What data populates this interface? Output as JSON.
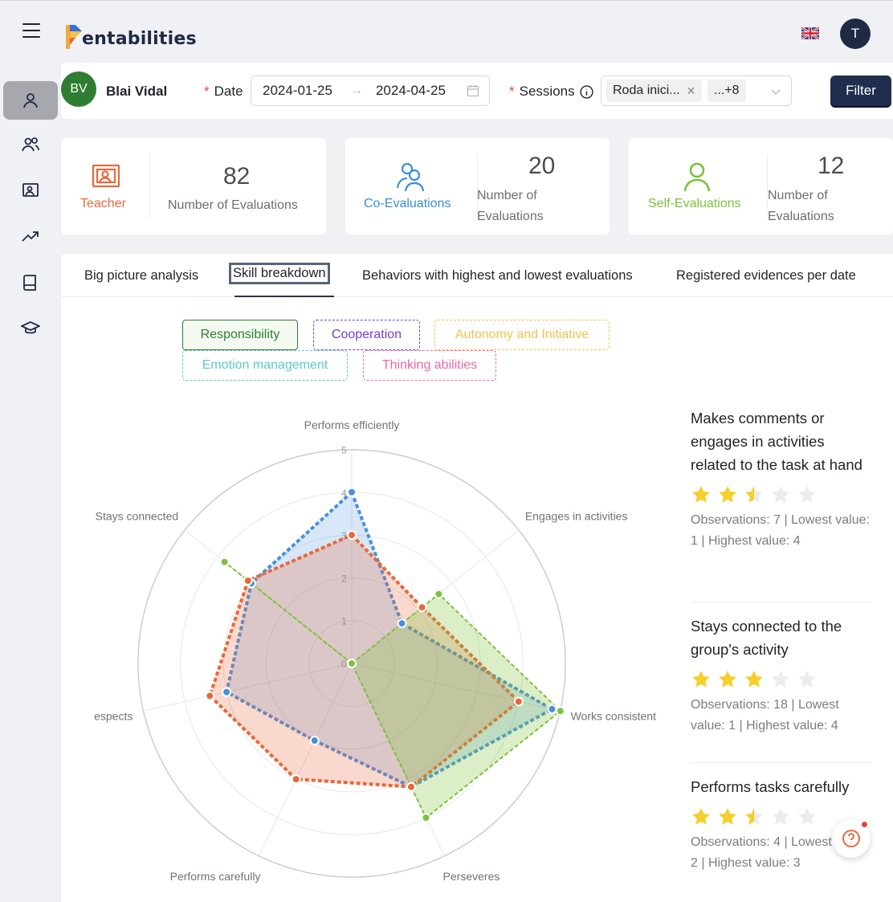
{
  "app": {
    "logo_text": "entabilities"
  },
  "header": {
    "user_initial": "T",
    "language_icon": "uk-flag-icon"
  },
  "sidebar": {
    "items": [
      "person-icon",
      "group-icon",
      "classroom-icon",
      "trend-icon",
      "book-icon",
      "graduation-icon"
    ]
  },
  "filters": {
    "student_initials": "BV",
    "student_name": "Blai Vidal",
    "required_mark": "*",
    "date_label": "Date",
    "date_start": "2024-01-25",
    "date_end": "2024-04-25",
    "sessions_label": "Sessions",
    "session_tag": "Roda inici...",
    "session_more": "...+8",
    "filter_button": "Filter"
  },
  "stats": [
    {
      "label": "Teacher",
      "value": "82",
      "sub": "Number of Evaluations",
      "color": "#e8683a"
    },
    {
      "label": "Co-Evaluations",
      "value": "20",
      "sub": "Number of Evaluations",
      "color": "#3a8fd6"
    },
    {
      "label": "Self-Evaluations",
      "value": "12",
      "sub": "Number of Evaluations",
      "color": "#7cc23a"
    }
  ],
  "tabs": [
    {
      "label": "Big picture analysis"
    },
    {
      "label": "Skill breakdown",
      "active": true
    },
    {
      "label": "Behaviors with highest and lowest evaluations"
    },
    {
      "label": "Registered evidences per date"
    }
  ],
  "skills": [
    {
      "label": "Responsibility",
      "color": "#2f7d32",
      "selected": true
    },
    {
      "label": "Cooperation",
      "color": "#7a3cd0"
    },
    {
      "label": "Autonomy and Initiative",
      "color": "#f2c14e"
    },
    {
      "label": "Emotion management",
      "color": "#5ec8c8"
    },
    {
      "label": "Thinking abilities",
      "color": "#e86aa8"
    }
  ],
  "chart_data": {
    "type": "radar",
    "axes": [
      "Performs efficiently",
      "Engages in activities",
      "Works consistent",
      "Perseveres",
      "Performs carefully",
      "espects",
      "Stays connected"
    ],
    "r_ticks": [
      "0",
      "1",
      "2",
      "3",
      "4",
      "5"
    ],
    "rlim": [
      0,
      5
    ],
    "series": [
      {
        "color": "#4a90d9",
        "values": [
          4,
          1.5,
          4.8,
          3.2,
          2.0,
          3.0,
          3.0
        ]
      },
      {
        "color": "#e8683a",
        "values": [
          3,
          2.1,
          4.0,
          3.2,
          3.0,
          3.4,
          3.1
        ]
      },
      {
        "color": "#7cc23a",
        "values": [
          0,
          2.6,
          5.0,
          4.0,
          0,
          0,
          3.8
        ]
      }
    ]
  },
  "behaviors": [
    {
      "title": "Makes comments or engages in activities related to the task at hand",
      "stars": 2.5,
      "obs_text": "Observations: 7 | Lowest value: 1 | Highest value: 4"
    },
    {
      "title": "Stays connected to the group's activity",
      "stars": 3,
      "obs_text": "Observations: 18 | Lowest value: 1 | Highest value: 4"
    },
    {
      "title": "Performs tasks carefully",
      "stars": 2.5,
      "obs_text": "Observations: 4 | Lowest value: 2 | Highest value: 3"
    }
  ]
}
